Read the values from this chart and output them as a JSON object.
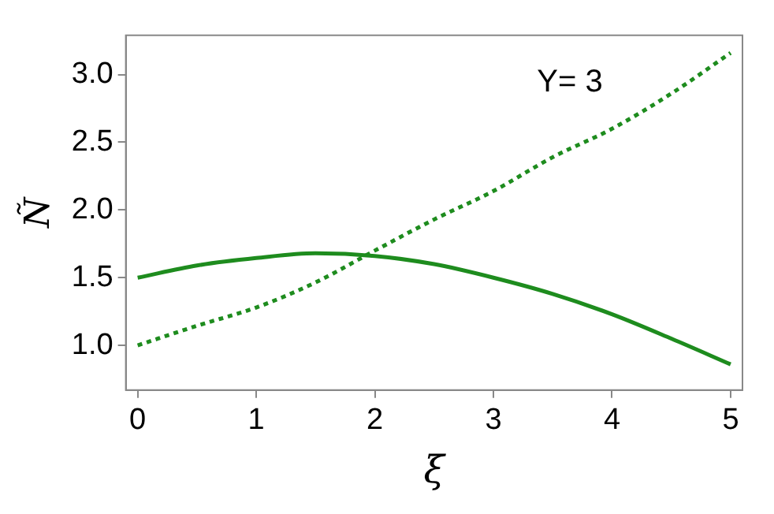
{
  "chart_data": {
    "type": "line",
    "xlabel": "ξ",
    "ylabel": "Ñ",
    "annotations": [
      "Y= 3"
    ],
    "x": [
      0,
      0.5,
      1,
      1.5,
      2,
      2.5,
      3,
      3.5,
      4,
      4.5,
      5
    ],
    "series": [
      {
        "color": "#1e8c1e",
        "line_style": "solid",
        "values": [
          1.5,
          1.59,
          1.645,
          1.68,
          1.66,
          1.6,
          1.5,
          1.38,
          1.23,
          1.05,
          0.86
        ]
      },
      {
        "color": "#1e8c1e",
        "line_style": "dotted",
        "values": [
          1.0,
          1.145,
          1.28,
          1.465,
          1.7,
          1.93,
          2.14,
          2.39,
          2.6,
          2.86,
          3.16
        ]
      }
    ],
    "xlim": [
      -0.1,
      5.1
    ],
    "ylim": [
      0.67,
      3.29
    ],
    "xticks": [
      0,
      1,
      2,
      3,
      4,
      5
    ],
    "yticks": [
      {
        "value": 1,
        "label": "1.0"
      },
      {
        "value": 1.5,
        "label": "1.5"
      },
      {
        "value": 2,
        "label": "2.0"
      },
      {
        "value": 2.5,
        "label": "2.5"
      },
      {
        "value": 3,
        "label": "3.0"
      }
    ],
    "grid": false,
    "legend": false,
    "marker": "none"
  }
}
